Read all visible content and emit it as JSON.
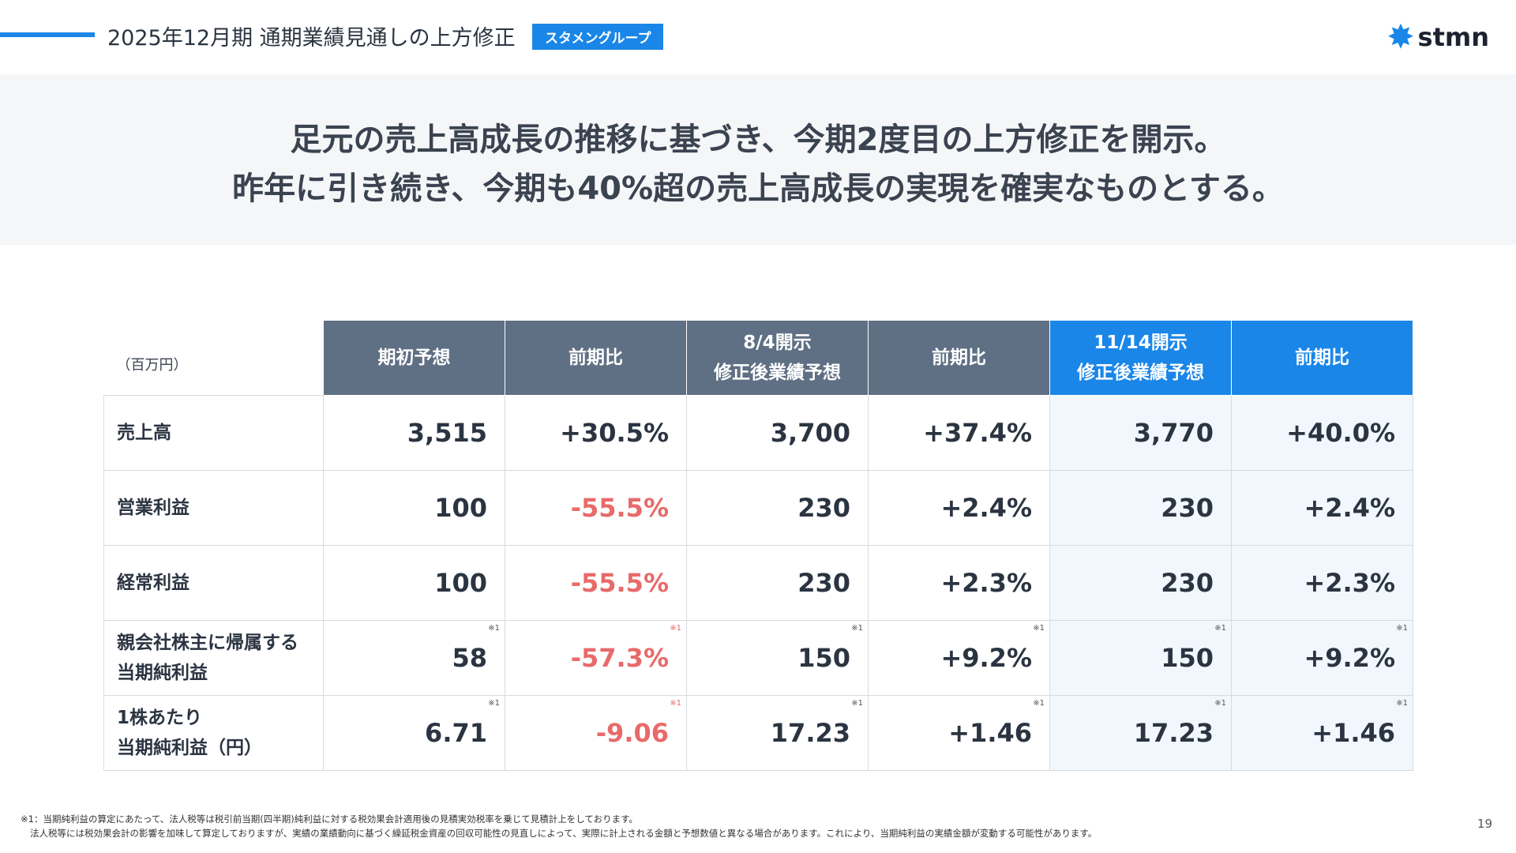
{
  "header": {
    "title": "2025年12月期 通期業績見通しの上方修正",
    "badge": "スタメングループ",
    "logo": "stmn"
  },
  "banner": {
    "line1": "足元の売上高成長の推移に基づき、今期2度目の上方修正を開示。",
    "line2": "昨年に引き続き、今期も40%超の売上高成長の実現を確実なものとする。"
  },
  "table": {
    "unit": "（百万円）",
    "headers": [
      "期初予想",
      "前期比",
      "8/4開示\n修正後業績予想",
      "前期比",
      "11/14開示\n修正後業績予想",
      "前期比"
    ],
    "header_lines": [
      [
        "期初予想"
      ],
      [
        "前期比"
      ],
      [
        "8/4開示",
        "修正後業績予想"
      ],
      [
        "前期比"
      ],
      [
        "11/14開示",
        "修正後業績予想"
      ],
      [
        "前期比"
      ]
    ],
    "rows": [
      {
        "label": [
          "売上高"
        ],
        "values": [
          "3,515",
          "+30.5%",
          "3,700",
          "+37.4%",
          "3,770",
          "+40.0%"
        ],
        "note": ""
      },
      {
        "label": [
          "営業利益"
        ],
        "values": [
          "100",
          "-55.5%",
          "230",
          "+2.4%",
          "230",
          "+2.4%"
        ],
        "note": ""
      },
      {
        "label": [
          "経常利益"
        ],
        "values": [
          "100",
          "-55.5%",
          "230",
          "+2.3%",
          "230",
          "+2.3%"
        ],
        "note": ""
      },
      {
        "label": [
          "親会社株主に帰属する",
          "当期純利益"
        ],
        "values": [
          "58",
          "-57.3%",
          "150",
          "+9.2%",
          "150",
          "+9.2%"
        ],
        "note": "※1"
      },
      {
        "label": [
          "1株あたり",
          "当期純利益（円）"
        ],
        "values": [
          "6.71",
          "-9.06",
          "17.23",
          "+1.46",
          "17.23",
          "+1.46"
        ],
        "note": "※1"
      }
    ]
  },
  "footnote": {
    "line1": "※1：当期純利益の算定にあたって、法人税等は税引前当期(四半期)純利益に対する税効果会計適用後の見積実効税率を乗じて見積計上をしております。",
    "line2": "法人税等には税効果会計の影響を加味して算定しておりますが、実績の業績動向に基づく繰延税金資産の回収可能性の見直しによって、実際に計上される金額と予想数値と異なる場合があります。これにより、当期純利益の実績金額が変動する可能性があります。"
  },
  "page_number": "19",
  "colors": {
    "accent": "#1a86e8",
    "header_gray": "#5f6f84",
    "negative": "#e86a6a"
  }
}
